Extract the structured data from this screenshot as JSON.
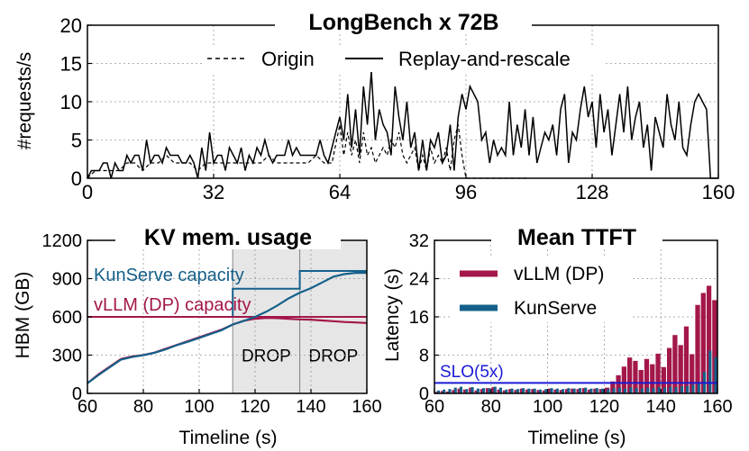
{
  "colors": {
    "vllm": "#a3174a",
    "kunserve": "#15608a",
    "slo": "#1a1ad6",
    "drop_fill": "#e6e6e6"
  },
  "chart_data": [
    {
      "id": "top",
      "type": "line",
      "title": "LongBench x 72B",
      "xlabel": "",
      "ylabel": "#requests/s",
      "xlim": [
        0,
        160
      ],
      "ylim": [
        0,
        20
      ],
      "xticks": [
        0,
        32,
        64,
        96,
        128,
        160
      ],
      "yticks": [
        0,
        5,
        10,
        15,
        20
      ],
      "legend": {
        "placement": "top-center",
        "entries": [
          "Origin",
          "Replay-and-rescale"
        ]
      },
      "series": [
        {
          "name": "Replay-and-rescale",
          "style": "solid",
          "x": [
            0,
            1,
            2,
            3,
            4,
            5,
            6,
            7,
            8,
            9,
            10,
            11,
            12,
            13,
            14,
            15,
            16,
            17,
            18,
            19,
            20,
            21,
            22,
            23,
            24,
            25,
            26,
            27,
            28,
            29,
            30,
            31,
            32,
            33,
            34,
            35,
            36,
            37,
            38,
            39,
            40,
            41,
            42,
            43,
            44,
            45,
            46,
            47,
            48,
            49,
            50,
            51,
            52,
            53,
            54,
            55,
            56,
            57,
            58,
            59,
            60,
            61,
            62,
            63,
            64,
            65,
            66,
            67,
            68,
            69,
            70,
            71,
            72,
            73,
            74,
            75,
            76,
            77,
            78,
            79,
            80,
            81,
            82,
            83,
            84,
            85,
            86,
            87,
            88,
            89,
            90,
            91,
            92,
            93,
            94,
            95,
            96,
            97,
            98,
            99,
            100,
            101,
            102,
            103,
            104,
            105,
            106,
            107,
            108,
            109,
            110,
            111,
            112,
            113,
            114,
            115,
            116,
            117,
            118,
            119,
            120,
            121,
            122,
            123,
            124,
            125,
            126,
            127,
            128,
            129,
            130,
            131,
            132,
            133,
            134,
            135,
            136,
            137,
            138,
            139,
            140,
            141,
            142,
            143,
            144,
            145,
            146,
            147,
            148,
            149,
            150,
            151,
            152,
            153,
            154,
            155,
            156,
            157,
            158,
            159,
            160
          ],
          "values": [
            0,
            1,
            1,
            1,
            2,
            2,
            0,
            2,
            1,
            1,
            3,
            2,
            3,
            3,
            1,
            5,
            2,
            3,
            3,
            2,
            4,
            3,
            3,
            3,
            2,
            2,
            3,
            2,
            0,
            4,
            1,
            6,
            2,
            3,
            3,
            1,
            4,
            3,
            2,
            4,
            1,
            3,
            2,
            4,
            3,
            5,
            3,
            2,
            3,
            3,
            3,
            5,
            3,
            4,
            3,
            3,
            3,
            3,
            3,
            5,
            3,
            2,
            4,
            6,
            8,
            5,
            11,
            4,
            9,
            3,
            12,
            7,
            14,
            5,
            9,
            7,
            6,
            3,
            12,
            8,
            5,
            10,
            4,
            6,
            1,
            5,
            1,
            5,
            4,
            6,
            2,
            3,
            7,
            1,
            8,
            11,
            9,
            12,
            11,
            10,
            5,
            6,
            2,
            5,
            3,
            4,
            3,
            10,
            3,
            7,
            4,
            9,
            3,
            8,
            2,
            4,
            6,
            5,
            7,
            3,
            9,
            11,
            2,
            6,
            5,
            9,
            12,
            8,
            10,
            4,
            11,
            6,
            9,
            3,
            7,
            11,
            6,
            12,
            5,
            8,
            10,
            4,
            7,
            1,
            8,
            6,
            4,
            11,
            7,
            5,
            10,
            4,
            3,
            7,
            10,
            11,
            10,
            9,
            0,
            0,
            0
          ],
          "note": "x in time units"
        },
        {
          "name": "Origin",
          "style": "dashed",
          "x": [
            0,
            2,
            4,
            6,
            8,
            10,
            12,
            14,
            16,
            18,
            20,
            22,
            24,
            26,
            28,
            30,
            32,
            34,
            36,
            38,
            40,
            42,
            44,
            46,
            48,
            50,
            52,
            54,
            56,
            58,
            60,
            62,
            64,
            65,
            66,
            67,
            68,
            69,
            70,
            71,
            72,
            73,
            74,
            75,
            76,
            77,
            78,
            79,
            80,
            81,
            82,
            83,
            84,
            85,
            86,
            87,
            88,
            89,
            90,
            91,
            92,
            93,
            94,
            95,
            96,
            100,
            104,
            108,
            112
          ],
          "values": [
            0,
            1,
            1,
            1,
            1,
            2,
            2,
            1,
            2,
            2,
            3,
            2,
            2,
            2,
            1,
            2,
            2,
            2,
            2,
            2,
            2,
            2,
            2,
            3,
            2,
            2,
            2,
            2,
            2,
            3,
            2,
            2,
            7,
            3,
            6,
            3,
            5,
            2,
            6,
            3,
            4,
            2,
            3,
            4,
            3,
            5,
            4,
            6,
            3,
            2,
            3,
            4,
            1,
            3,
            1,
            4,
            2,
            3,
            2,
            4,
            1,
            5,
            7,
            3,
            0,
            0,
            0,
            0,
            0
          ]
        }
      ]
    },
    {
      "id": "kv",
      "type": "line",
      "title": "KV mem. usage",
      "xlabel": "Timeline (s)",
      "ylabel": "HBM (GB)",
      "xlim": [
        60,
        160
      ],
      "ylim": [
        0,
        1200
      ],
      "xticks": [
        60,
        80,
        100,
        120,
        140,
        160
      ],
      "yticks": [
        0,
        300,
        600,
        900,
        1200
      ],
      "drop_regions": [
        {
          "x0": 112,
          "x1": 136,
          "label": "DROP"
        },
        {
          "x0": 136,
          "x1": 160,
          "label": "DROP"
        }
      ],
      "series": [
        {
          "name": "KunServe capacity",
          "color": "#15608a",
          "style": "solid",
          "x": [
            60,
            112,
            112,
            136,
            136,
            160
          ],
          "values": [
            600,
            600,
            820,
            820,
            960,
            960
          ]
        },
        {
          "name": "vLLM (DP) capacity",
          "color": "#a3174a",
          "style": "solid",
          "x": [
            60,
            160
          ],
          "values": [
            600,
            600
          ]
        },
        {
          "name": "vLLM (DP) usage",
          "color": "#a3174a",
          "style": "solid",
          "x": [
            60,
            64,
            68,
            72,
            76,
            80,
            84,
            88,
            92,
            96,
            100,
            104,
            108,
            112,
            116,
            120,
            124,
            128,
            132,
            136,
            140,
            144,
            148,
            152,
            156,
            160
          ],
          "values": [
            80,
            150,
            210,
            270,
            290,
            300,
            320,
            350,
            380,
            410,
            440,
            470,
            500,
            540,
            570,
            585,
            592,
            590,
            585,
            580,
            578,
            572,
            566,
            560,
            556,
            552
          ]
        },
        {
          "name": "KunServe usage",
          "color": "#15608a",
          "style": "solid",
          "x": [
            60,
            64,
            68,
            72,
            76,
            80,
            84,
            88,
            92,
            96,
            100,
            104,
            108,
            112,
            116,
            120,
            124,
            128,
            132,
            136,
            140,
            144,
            148,
            152,
            156,
            160
          ],
          "values": [
            80,
            145,
            205,
            265,
            285,
            300,
            318,
            345,
            378,
            405,
            435,
            465,
            495,
            540,
            568,
            600,
            640,
            690,
            745,
            790,
            825,
            870,
            915,
            935,
            945,
            945
          ]
        }
      ]
    },
    {
      "id": "ttft",
      "type": "bar",
      "title": "Mean TTFT",
      "xlabel": "Timeline (s)",
      "ylabel": "Latency (s)",
      "xlim": [
        60,
        160
      ],
      "ylim": [
        0,
        32
      ],
      "xticks": [
        60,
        80,
        100,
        120,
        140,
        160
      ],
      "yticks": [
        0,
        8,
        16,
        24,
        32
      ],
      "slo": {
        "label": "SLO(5x)",
        "value": 2.2
      },
      "legend": {
        "placement": "top-right",
        "entries": [
          "vLLM (DP)",
          "KunServe"
        ]
      },
      "x": [
        60,
        62,
        64,
        66,
        68,
        70,
        72,
        74,
        76,
        78,
        80,
        82,
        84,
        86,
        88,
        90,
        92,
        94,
        96,
        98,
        100,
        102,
        104,
        106,
        108,
        110,
        112,
        114,
        116,
        118,
        120,
        122,
        124,
        126,
        128,
        130,
        132,
        134,
        136,
        138,
        140,
        142,
        144,
        146,
        148,
        150,
        152,
        154,
        156,
        158
      ],
      "series": [
        {
          "name": "vLLM (DP)",
          "color": "#a3174a",
          "values": [
            0.3,
            0.5,
            0.4,
            0.7,
            1.0,
            0.8,
            1.2,
            0.6,
            0.9,
            1.1,
            1.3,
            0.8,
            0.6,
            0.9,
            0.7,
            1.0,
            0.8,
            0.9,
            0.7,
            0.6,
            1.0,
            0.8,
            0.7,
            0.9,
            1.0,
            0.9,
            1.1,
            0.8,
            1.0,
            0.9,
            1.2,
            2.5,
            3.8,
            5.6,
            7.5,
            6.8,
            4.9,
            7.2,
            6.1,
            8.3,
            5.5,
            9.5,
            12.2,
            10.1,
            14.0,
            8.2,
            18.5,
            21.0,
            22.5,
            19.5
          ]
        },
        {
          "name": "KunServe",
          "color": "#15608a",
          "values": [
            0.6,
            0.8,
            0.9,
            1.2,
            1.4,
            0.9,
            1.3,
            1.0,
            1.1,
            1.0,
            1.4,
            1.2,
            0.8,
            1.0,
            0.9,
            1.1,
            1.0,
            1.0,
            0.8,
            0.9,
            1.1,
            1.0,
            0.9,
            1.1,
            1.0,
            1.1,
            1.2,
            1.0,
            1.1,
            1.0,
            0.9,
            1.1,
            1.2,
            1.0,
            1.3,
            1.1,
            1.0,
            1.2,
            1.1,
            1.3,
            1.2,
            1.4,
            1.3,
            1.5,
            1.6,
            1.8,
            2.2,
            4.5,
            8.9,
            7.6
          ]
        }
      ]
    }
  ]
}
